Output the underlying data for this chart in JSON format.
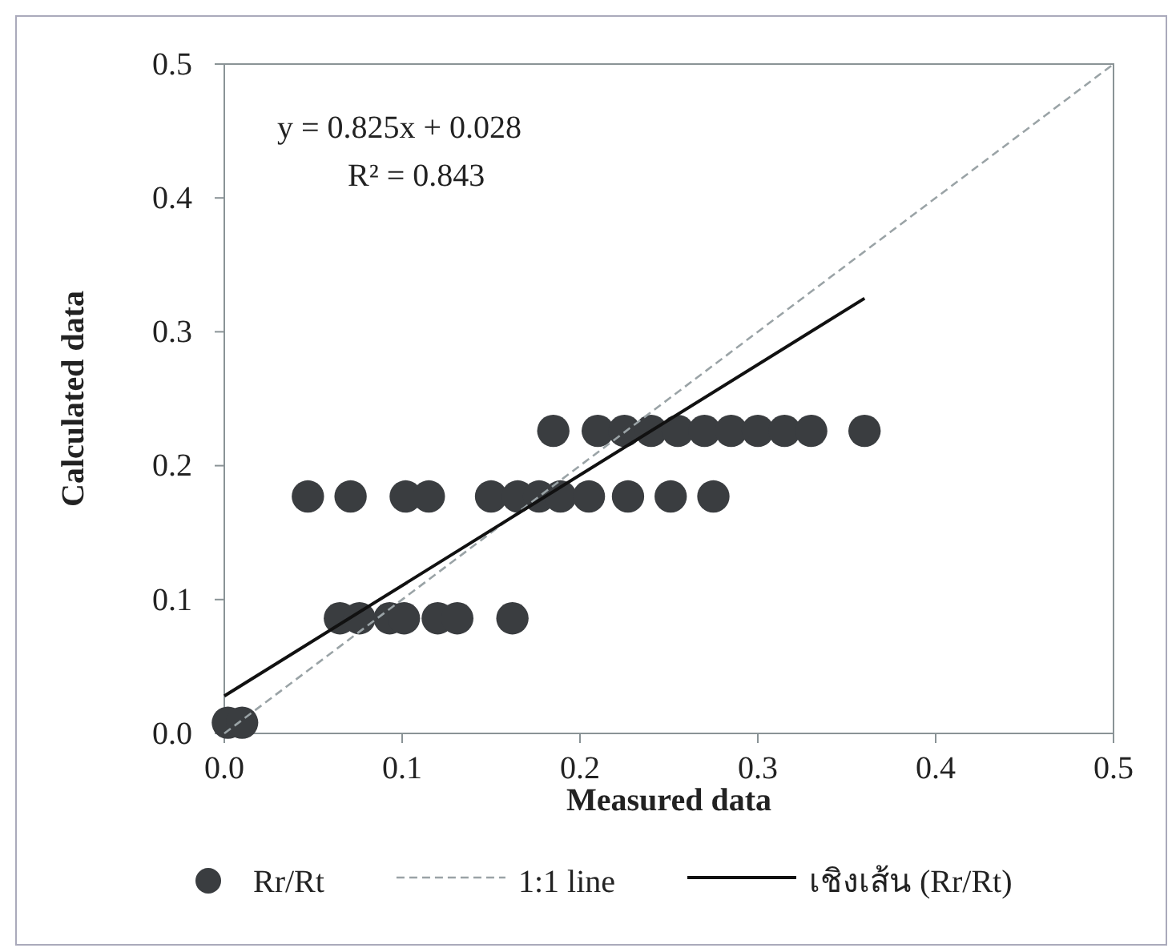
{
  "chart_data": {
    "type": "scatter",
    "xlabel": "Measured data",
    "ylabel": "Calculated data",
    "xlim": [
      0,
      0.5
    ],
    "ylim": [
      0,
      0.5
    ],
    "xticks": [
      {
        "value": 0,
        "label": "0.0"
      },
      0.1,
      0.2,
      0.3,
      0.4,
      0.5
    ],
    "yticks": [
      {
        "value": 0,
        "label": "0.0"
      },
      0.1,
      0.2,
      0.3,
      0.4,
      0.5
    ],
    "grid": false,
    "legend": "bottom",
    "marker": "circle",
    "annotations": [
      "y = 0.825x + 0.028",
      "R² = 0.843"
    ],
    "series": [
      {
        "name": "Rr/Rt",
        "color": "#3a3d40",
        "x": [
          0.002,
          0.01,
          0.065,
          0.076,
          0.093,
          0.101,
          0.12,
          0.131,
          0.162,
          0.047,
          0.071,
          0.102,
          0.115,
          0.15,
          0.165,
          0.177,
          0.189,
          0.205,
          0.227,
          0.251,
          0.275,
          0.185,
          0.21,
          0.225,
          0.24,
          0.255,
          0.27,
          0.285,
          0.3,
          0.315,
          0.33,
          0.36
        ],
        "values": [
          0.008,
          0.008,
          0.086,
          0.086,
          0.086,
          0.086,
          0.086,
          0.086,
          0.086,
          0.177,
          0.177,
          0.177,
          0.177,
          0.177,
          0.177,
          0.177,
          0.177,
          0.177,
          0.177,
          0.177,
          0.177,
          0.226,
          0.226,
          0.226,
          0.226,
          0.226,
          0.226,
          0.226,
          0.226,
          0.226,
          0.226,
          0.226
        ]
      },
      {
        "name": "1:1 line",
        "type": "line",
        "color": "#9aa3a6",
        "line_style": "dashed",
        "marker": "none",
        "x": [
          0,
          0.5
        ],
        "values": [
          0,
          0.5
        ]
      },
      {
        "name": "เชิงเส้น (Rr/Rt)",
        "type": "line",
        "color": "#111111",
        "line_style": "solid",
        "marker": "none",
        "x": [
          0,
          0.36
        ],
        "values": [
          0.028,
          0.325
        ]
      }
    ]
  }
}
